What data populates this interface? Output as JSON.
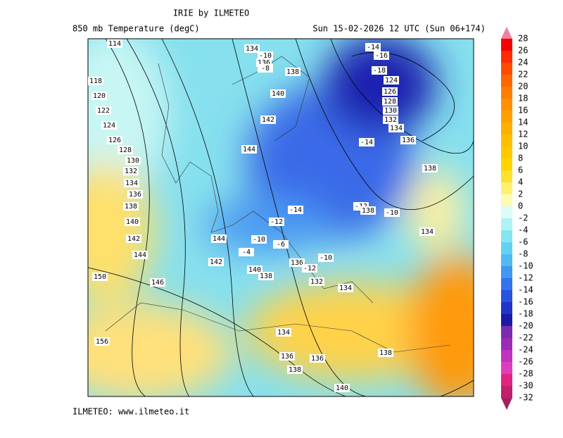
{
  "header": {
    "title": "IRIE by ILMETEO",
    "field": "850 mb Temperature (degC)",
    "valid": "Sun 15-02-2026 12 UTC (Sun 06+174)"
  },
  "footer": "ILMETEO: www.ilmeteo.it",
  "colorbar": {
    "levels": [
      28,
      26,
      24,
      22,
      20,
      18,
      16,
      14,
      12,
      10,
      8,
      6,
      4,
      2,
      0,
      -2,
      -4,
      -6,
      -8,
      -10,
      -12,
      -14,
      -16,
      -18,
      -20,
      -22,
      -24,
      -26,
      -28,
      -30,
      -32
    ],
    "colors": [
      "#f40000",
      "#ff2c00",
      "#ff4c00",
      "#ff6600",
      "#ff7c00",
      "#ff9000",
      "#ffa000",
      "#ffb000",
      "#ffbe00",
      "#ffc800",
      "#ffd400",
      "#ffe030",
      "#fff070",
      "#fffab4",
      "#dcfcf8",
      "#b0f2f4",
      "#84e6f0",
      "#62d2f2",
      "#50baf2",
      "#4098f2",
      "#3274ee",
      "#2a52e0",
      "#2234c8",
      "#1a1aa6",
      "#7a2cb0",
      "#9c2cb8",
      "#c032c0",
      "#e03cc0",
      "#e02484",
      "#c0206c"
    ]
  },
  "contour_labels": [
    114,
    134,
    -10,
    136,
    -8,
    138,
    140,
    142,
    144,
    -14,
    -16,
    -18,
    124,
    126,
    128,
    130,
    132,
    134,
    136,
    -14,
    138,
    118,
    120,
    122,
    124,
    126,
    128,
    130,
    132,
    134,
    136,
    138,
    140,
    142,
    144,
    -14,
    -12,
    -12,
    138,
    -10,
    134,
    144,
    -10,
    -6,
    -4,
    136,
    -12,
    -10,
    140,
    138,
    142,
    146,
    132,
    134,
    134,
    136,
    138,
    136,
    138,
    140,
    156,
    150
  ]
}
